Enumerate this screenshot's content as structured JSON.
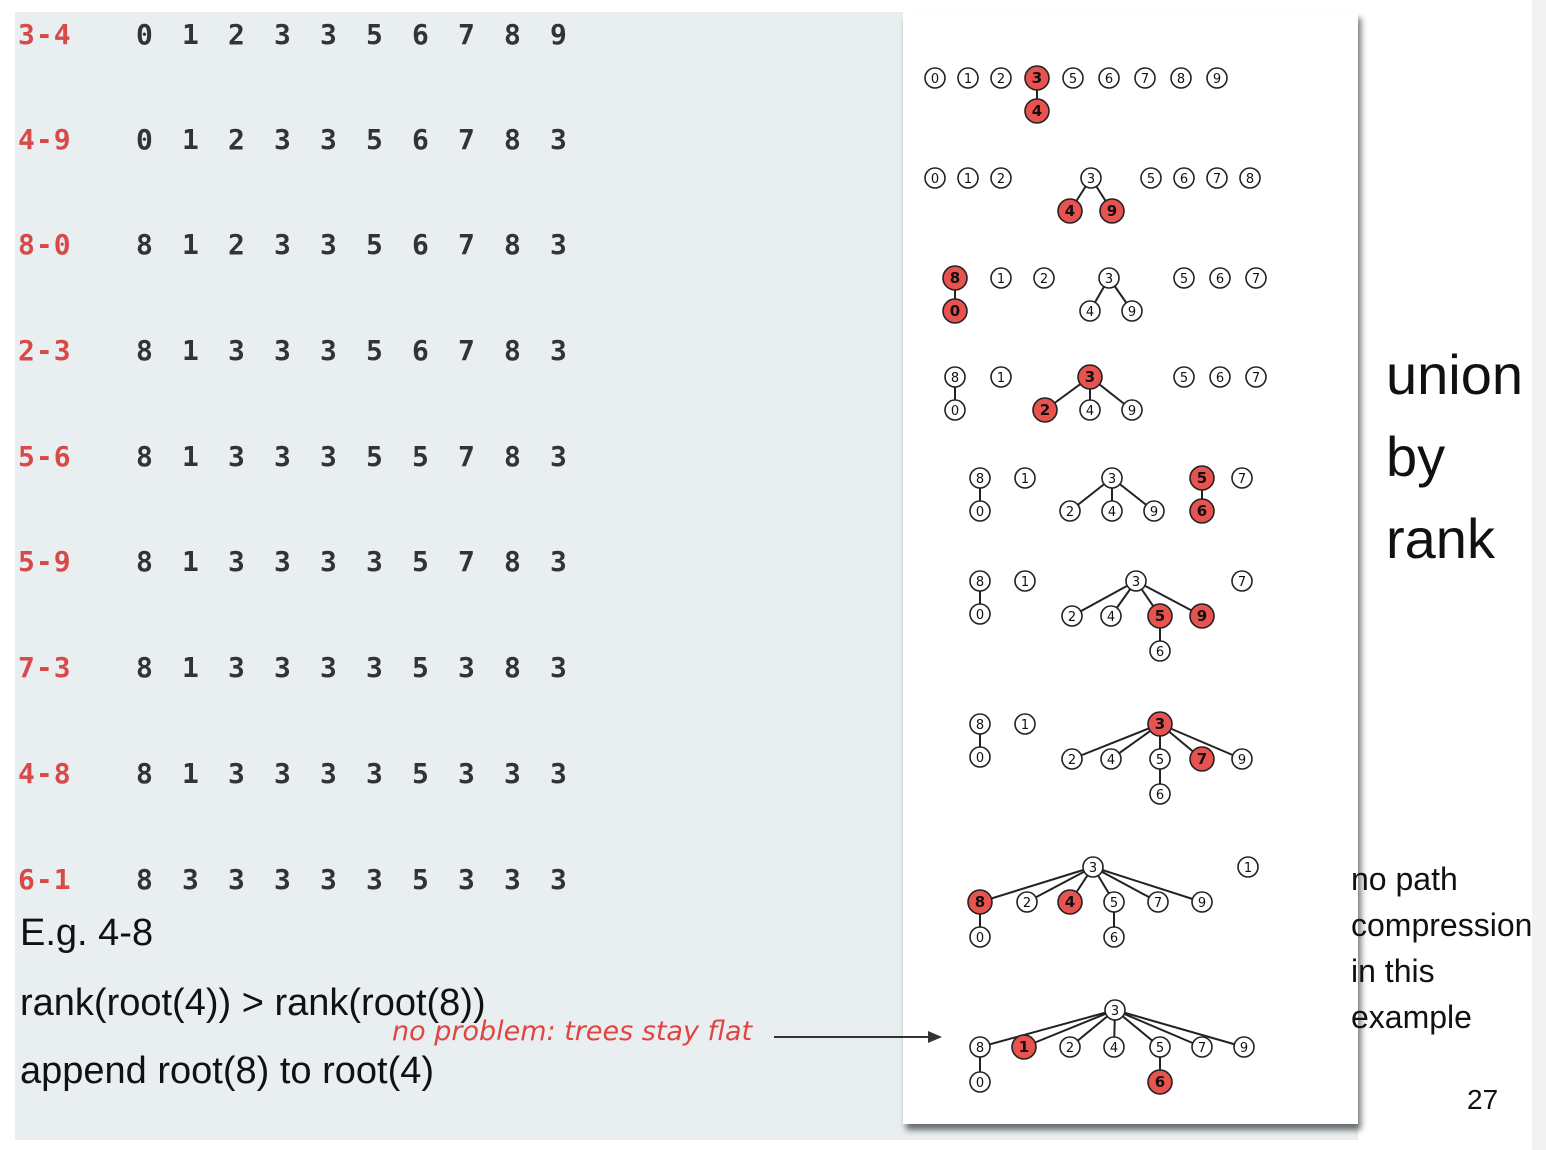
{
  "steps": [
    {
      "label": "3-4",
      "values": [
        "0",
        "1",
        "2",
        "3",
        "3",
        "5",
        "6",
        "7",
        "8",
        "9"
      ]
    },
    {
      "label": "4-9",
      "values": [
        "0",
        "1",
        "2",
        "3",
        "3",
        "5",
        "6",
        "7",
        "8",
        "3"
      ]
    },
    {
      "label": "8-0",
      "values": [
        "8",
        "1",
        "2",
        "3",
        "3",
        "5",
        "6",
        "7",
        "8",
        "3"
      ]
    },
    {
      "label": "2-3",
      "values": [
        "8",
        "1",
        "3",
        "3",
        "3",
        "5",
        "6",
        "7",
        "8",
        "3"
      ]
    },
    {
      "label": "5-6",
      "values": [
        "8",
        "1",
        "3",
        "3",
        "3",
        "5",
        "5",
        "7",
        "8",
        "3"
      ]
    },
    {
      "label": "5-9",
      "values": [
        "8",
        "1",
        "3",
        "3",
        "3",
        "3",
        "5",
        "7",
        "8",
        "3"
      ]
    },
    {
      "label": "7-3",
      "values": [
        "8",
        "1",
        "3",
        "3",
        "3",
        "3",
        "5",
        "3",
        "8",
        "3"
      ]
    },
    {
      "label": "4-8",
      "values": [
        "8",
        "1",
        "3",
        "3",
        "3",
        "3",
        "5",
        "3",
        "3",
        "3"
      ]
    },
    {
      "label": "6-1",
      "values": [
        "8",
        "3",
        "3",
        "3",
        "3",
        "3",
        "5",
        "3",
        "3",
        "3"
      ]
    }
  ],
  "note": {
    "line1": "E.g. 4-8",
    "line2": "rank(root(4)) > rank(root(8))",
    "line3": "append root(8) to root(4)"
  },
  "annotation": "no problem: trees stay flat",
  "title": {
    "word1": "union",
    "word2": "by",
    "word3": "rank"
  },
  "side_note": {
    "line1": "no path",
    "line2": "compression",
    "line3": "in this",
    "line4": "example"
  },
  "page_number": "27",
  "colors": {
    "highlight": "#e8524f",
    "step_label": "#d84a48",
    "panel_bg": "#e9eef0"
  },
  "trees": [
    {
      "nodes": [
        {
          "id": "0"
        },
        {
          "id": "1"
        },
        {
          "id": "2"
        },
        {
          "id": "3",
          "hl": true
        },
        {
          "id": "4",
          "hl": true,
          "parent": "3"
        },
        {
          "id": "5"
        },
        {
          "id": "6"
        },
        {
          "id": "7"
        },
        {
          "id": "8"
        },
        {
          "id": "9"
        }
      ]
    },
    {
      "nodes": [
        {
          "id": "0"
        },
        {
          "id": "1"
        },
        {
          "id": "2"
        },
        {
          "id": "3"
        },
        {
          "id": "4",
          "hl": true,
          "parent": "3"
        },
        {
          "id": "9",
          "hl": true,
          "parent": "3"
        },
        {
          "id": "5"
        },
        {
          "id": "6"
        },
        {
          "id": "7"
        },
        {
          "id": "8"
        }
      ]
    },
    {
      "nodes": [
        {
          "id": "8",
          "hl": true
        },
        {
          "id": "0",
          "hl": true,
          "parent": "8"
        },
        {
          "id": "1"
        },
        {
          "id": "2"
        },
        {
          "id": "3"
        },
        {
          "id": "4",
          "parent": "3"
        },
        {
          "id": "9",
          "parent": "3"
        },
        {
          "id": "5"
        },
        {
          "id": "6"
        },
        {
          "id": "7"
        }
      ]
    },
    {
      "nodes": [
        {
          "id": "8"
        },
        {
          "id": "0",
          "parent": "8"
        },
        {
          "id": "1"
        },
        {
          "id": "3",
          "hl": true
        },
        {
          "id": "2",
          "hl": true,
          "parent": "3"
        },
        {
          "id": "4",
          "parent": "3"
        },
        {
          "id": "9",
          "parent": "3"
        },
        {
          "id": "5"
        },
        {
          "id": "6"
        },
        {
          "id": "7"
        }
      ]
    },
    {
      "nodes": [
        {
          "id": "8"
        },
        {
          "id": "0",
          "parent": "8"
        },
        {
          "id": "1"
        },
        {
          "id": "3"
        },
        {
          "id": "2",
          "parent": "3"
        },
        {
          "id": "4",
          "parent": "3"
        },
        {
          "id": "9",
          "parent": "3"
        },
        {
          "id": "5",
          "hl": true
        },
        {
          "id": "6",
          "hl": true,
          "parent": "5"
        },
        {
          "id": "7"
        }
      ]
    },
    {
      "nodes": [
        {
          "id": "8"
        },
        {
          "id": "0",
          "parent": "8"
        },
        {
          "id": "1"
        },
        {
          "id": "3"
        },
        {
          "id": "2",
          "parent": "3"
        },
        {
          "id": "4",
          "parent": "3"
        },
        {
          "id": "5",
          "hl": true,
          "parent": "3"
        },
        {
          "id": "9",
          "hl": true,
          "parent": "3"
        },
        {
          "id": "6",
          "parent": "5"
        },
        {
          "id": "7"
        }
      ]
    },
    {
      "nodes": [
        {
          "id": "8"
        },
        {
          "id": "0",
          "parent": "8"
        },
        {
          "id": "1"
        },
        {
          "id": "3",
          "hl": true
        },
        {
          "id": "2",
          "parent": "3"
        },
        {
          "id": "4",
          "parent": "3"
        },
        {
          "id": "5",
          "parent": "3"
        },
        {
          "id": "7",
          "hl": true,
          "parent": "3"
        },
        {
          "id": "9",
          "parent": "3"
        },
        {
          "id": "6",
          "parent": "5"
        }
      ]
    },
    {
      "nodes": [
        {
          "id": "3"
        },
        {
          "id": "8",
          "hl": true,
          "parent": "3"
        },
        {
          "id": "2",
          "parent": "3"
        },
        {
          "id": "4",
          "hl": true,
          "parent": "3"
        },
        {
          "id": "5",
          "parent": "3"
        },
        {
          "id": "7",
          "parent": "3"
        },
        {
          "id": "9",
          "parent": "3"
        },
        {
          "id": "1"
        },
        {
          "id": "0",
          "parent": "8"
        },
        {
          "id": "6",
          "parent": "5"
        }
      ]
    },
    {
      "nodes": [
        {
          "id": "3"
        },
        {
          "id": "8",
          "parent": "3"
        },
        {
          "id": "1",
          "hl": true,
          "parent": "3"
        },
        {
          "id": "2",
          "parent": "3"
        },
        {
          "id": "4",
          "parent": "3"
        },
        {
          "id": "5",
          "parent": "3"
        },
        {
          "id": "7",
          "parent": "3"
        },
        {
          "id": "9",
          "parent": "3"
        },
        {
          "id": "0",
          "parent": "8"
        },
        {
          "id": "6",
          "hl": true,
          "parent": "5"
        }
      ]
    }
  ]
}
